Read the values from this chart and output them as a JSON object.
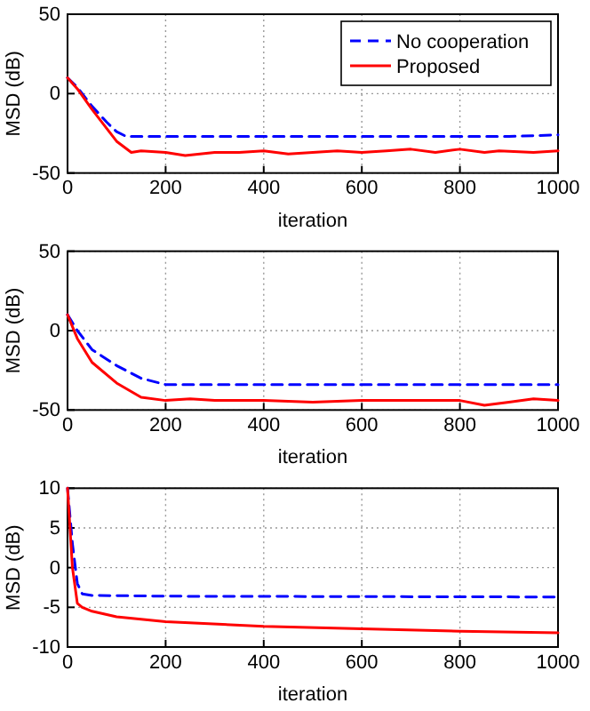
{
  "chart_data": [
    {
      "type": "line",
      "xlabel": "iteration",
      "ylabel": "MSD (dB)",
      "xlim": [
        0,
        1000
      ],
      "xticks": [
        0,
        200,
        400,
        600,
        800,
        1000
      ],
      "ylim": [
        -50,
        50
      ],
      "yticks": [
        -50,
        0,
        50
      ],
      "grid": true,
      "legend": "top right",
      "series": [
        {
          "name": "No cooperation",
          "color": "#0000ff",
          "line_style": "dashed",
          "x": [
            0,
            20,
            50,
            80,
            100,
            120,
            200,
            300,
            400,
            500,
            600,
            700,
            800,
            900,
            1000
          ],
          "values": [
            10,
            4,
            -8,
            -18,
            -24,
            -27,
            -27,
            -27,
            -27,
            -27,
            -27,
            -27,
            -27,
            -27,
            -26
          ]
        },
        {
          "name": "Proposed",
          "color": "#ff0000",
          "line_style": "solid",
          "x": [
            0,
            20,
            50,
            80,
            100,
            130,
            150,
            200,
            240,
            300,
            350,
            400,
            450,
            500,
            550,
            600,
            650,
            700,
            750,
            800,
            850,
            880,
            950,
            1000
          ],
          "values": [
            10,
            3,
            -10,
            -22,
            -30,
            -37,
            -36,
            -37,
            -39,
            -37,
            -37,
            -36,
            -38,
            -37,
            -36,
            -37,
            -36,
            -35,
            -37,
            -35,
            -37,
            -36,
            -37,
            -36
          ]
        }
      ]
    },
    {
      "type": "line",
      "xlabel": "iteration",
      "ylabel": "MSD (dB)",
      "xlim": [
        0,
        1000
      ],
      "xticks": [
        0,
        200,
        400,
        600,
        800,
        1000
      ],
      "ylim": [
        -50,
        50
      ],
      "yticks": [
        -50,
        0,
        50
      ],
      "grid": true,
      "series": [
        {
          "color": "#0000ff",
          "line_style": "dashed",
          "x": [
            0,
            20,
            50,
            100,
            150,
            200,
            300,
            400,
            500,
            600,
            700,
            800,
            900,
            1000
          ],
          "values": [
            10,
            0,
            -12,
            -22,
            -30,
            -34,
            -34,
            -34,
            -34,
            -34,
            -34,
            -34,
            -34,
            -34
          ]
        },
        {
          "color": "#ff0000",
          "line_style": "solid",
          "x": [
            0,
            20,
            50,
            100,
            150,
            200,
            250,
            300,
            400,
            500,
            600,
            700,
            800,
            850,
            900,
            950,
            1000
          ],
          "values": [
            10,
            -5,
            -20,
            -33,
            -42,
            -44,
            -43,
            -44,
            -44,
            -45,
            -44,
            -44,
            -44,
            -47,
            -45,
            -43,
            -44
          ]
        }
      ]
    },
    {
      "type": "line",
      "xlabel": "iteration",
      "ylabel": "MSD (dB)",
      "xlim": [
        0,
        1000
      ],
      "xticks": [
        0,
        200,
        400,
        600,
        800,
        1000
      ],
      "ylim": [
        -10,
        10
      ],
      "yticks": [
        -10,
        -5,
        0,
        5,
        10
      ],
      "grid": true,
      "series": [
        {
          "color": "#0000ff",
          "line_style": "dashed",
          "x": [
            0,
            10,
            20,
            30,
            50,
            200,
            1000
          ],
          "values": [
            10,
            3,
            -2,
            -3.3,
            -3.5,
            -3.6,
            -3.7
          ]
        },
        {
          "color": "#ff0000",
          "line_style": "solid",
          "x": [
            0,
            5,
            10,
            20,
            30,
            50,
            100,
            200,
            400,
            600,
            800,
            1000
          ],
          "values": [
            10,
            5,
            0,
            -4.5,
            -5,
            -5.5,
            -6.2,
            -6.8,
            -7.4,
            -7.7,
            -8,
            -8.2
          ]
        }
      ]
    }
  ]
}
